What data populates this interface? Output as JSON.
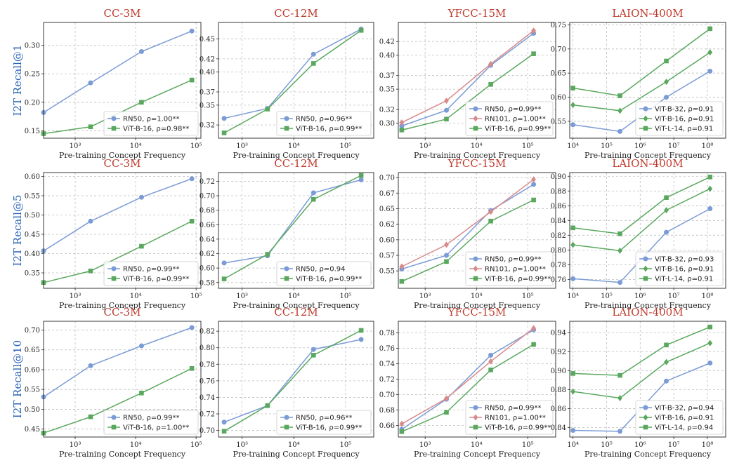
{
  "colors": {
    "RN50": "#7b9bd6",
    "RN101": "#d98a8a",
    "ViT-B-16": "#5aa85e",
    "ViT-B-32": "#7b9bd6",
    "ViT-L-14": "#5aa85e",
    "title": "#c0392b",
    "rowlabel": "#2a64b5"
  },
  "chart_data": [
    {
      "type": "line",
      "title": "CC-3M",
      "ylabel": "I2T Recall@1",
      "xlabel": "Pre-training Concept Frequency",
      "xscale": "log",
      "xlim": [
        300,
        120000
      ],
      "ylim": [
        0.137,
        0.34
      ],
      "yticks": [
        0.15,
        0.2,
        0.25,
        0.3
      ],
      "ytick_labels": [
        "0.15",
        "0.20",
        "0.25",
        "0.30"
      ],
      "xticks": [
        1000,
        10000,
        100000
      ],
      "legend_position": "lower-right",
      "grid": true,
      "series": [
        {
          "name": "RN50",
          "label": "RN50, ρ=1.00**",
          "marker": "circle",
          "x": [
            300,
            1800,
            12500,
            85000
          ],
          "values": [
            0.182,
            0.234,
            0.289,
            0.325
          ]
        },
        {
          "name": "ViT-B-16",
          "label": "ViT-B-16, ρ=0.98**",
          "marker": "square",
          "x": [
            300,
            1800,
            12500,
            85000
          ],
          "values": [
            0.145,
            0.157,
            0.2,
            0.239
          ]
        }
      ]
    },
    {
      "type": "line",
      "title": "CC-12M",
      "ylabel": "",
      "xlabel": "Pre-training Concept Frequency",
      "xscale": "log",
      "xlim": [
        350,
        350000
      ],
      "ylim": [
        0.3,
        0.475
      ],
      "yticks": [
        0.32,
        0.35,
        0.37,
        0.4,
        0.42,
        0.45
      ],
      "ytick_labels": [
        "0.32",
        "0.35",
        "0.37",
        "0.40",
        "0.42",
        "0.45"
      ],
      "xticks": [
        1000,
        10000,
        100000
      ],
      "legend_position": "lower-right",
      "grid": true,
      "series": [
        {
          "name": "RN50",
          "label": "RN50, ρ=0.96**",
          "marker": "circle",
          "x": [
            450,
            3100,
            24000,
            200000
          ],
          "values": [
            0.33,
            0.345,
            0.427,
            0.465
          ]
        },
        {
          "name": "ViT-B-16",
          "label": "ViT-B-16, ρ=0.99**",
          "marker": "square",
          "x": [
            450,
            3100,
            24000,
            200000
          ],
          "values": [
            0.308,
            0.344,
            0.413,
            0.463
          ]
        }
      ]
    },
    {
      "type": "line",
      "title": "YFCC-15M",
      "ylabel": "",
      "xlabel": "Pre-training Concept Frequency",
      "xscale": "log",
      "xlim": [
        300,
        350000
      ],
      "ylim": [
        0.278,
        0.448
      ],
      "yticks": [
        0.3,
        0.32,
        0.35,
        0.37,
        0.4,
        0.42
      ],
      "ytick_labels": [
        "0.30",
        "0.32",
        "0.35",
        "0.37",
        "0.40",
        "0.42"
      ],
      "xticks": [
        1000,
        10000,
        100000
      ],
      "legend_position": "lower-right",
      "grid": true,
      "series": [
        {
          "name": "RN50",
          "label": "RN50, ρ=0.99**",
          "marker": "circle",
          "x": [
            350,
            2600,
            19000,
            130000
          ],
          "values": [
            0.296,
            0.319,
            0.385,
            0.432
          ]
        },
        {
          "name": "RN101",
          "label": "RN101, ρ=1.00**",
          "marker": "diamond",
          "x": [
            350,
            2600,
            19000,
            130000
          ],
          "values": [
            0.301,
            0.333,
            0.387,
            0.436
          ]
        },
        {
          "name": "ViT-B-16",
          "label": "ViT-B-16, ρ=0.99**",
          "marker": "square",
          "x": [
            350,
            2600,
            19000,
            130000
          ],
          "values": [
            0.29,
            0.306,
            0.357,
            0.402
          ]
        }
      ]
    },
    {
      "type": "line",
      "title": "LAION-400M",
      "ylabel": "",
      "xlabel": "Pre-training Concept Frequency",
      "xscale": "log",
      "xlim": [
        8000,
        350000000
      ],
      "ylim": [
        0.515,
        0.755
      ],
      "yticks": [
        0.55,
        0.6,
        0.65,
        0.7,
        0.75
      ],
      "ytick_labels": [
        "0.55",
        "0.60",
        "0.65",
        "0.70",
        "0.75"
      ],
      "xticks": [
        10000,
        100000,
        1000000,
        10000000,
        100000000
      ],
      "legend_position": "lower-right",
      "grid": true,
      "series": [
        {
          "name": "ViT-B-32",
          "label": "ViT-B-32, ρ=0.91",
          "marker": "circle",
          "x": [
            10000,
            250000,
            6000000,
            120000000
          ],
          "values": [
            0.543,
            0.529,
            0.6,
            0.654
          ]
        },
        {
          "name": "ViT-B-16",
          "label": "ViT-B-16, ρ=0.91",
          "marker": "diamond",
          "x": [
            10000,
            250000,
            6000000,
            120000000
          ],
          "values": [
            0.584,
            0.572,
            0.632,
            0.693
          ]
        },
        {
          "name": "ViT-L-14",
          "label": "ViT-L-14, ρ=0.91",
          "marker": "square",
          "x": [
            10000,
            250000,
            6000000,
            120000000
          ],
          "values": [
            0.619,
            0.603,
            0.675,
            0.742
          ]
        }
      ]
    },
    {
      "type": "line",
      "title": "CC-3M",
      "ylabel": "I2T Recall@5",
      "xlabel": "Pre-training Concept Frequency",
      "xscale": "log",
      "xlim": [
        300,
        120000
      ],
      "ylim": [
        0.31,
        0.61
      ],
      "yticks": [
        0.35,
        0.4,
        0.45,
        0.5,
        0.55,
        0.6
      ],
      "ytick_labels": [
        "0.35",
        "0.40",
        "0.45",
        "0.50",
        "0.55",
        "0.60"
      ],
      "xticks": [
        1000,
        10000,
        100000
      ],
      "legend_position": "lower-right",
      "grid": true,
      "series": [
        {
          "name": "RN50",
          "label": "RN50, ρ=0.99**",
          "marker": "circle",
          "x": [
            300,
            1800,
            12500,
            85000
          ],
          "values": [
            0.407,
            0.484,
            0.546,
            0.594
          ]
        },
        {
          "name": "ViT-B-16",
          "label": "ViT-B-16, ρ=0.99**",
          "marker": "square",
          "x": [
            300,
            1800,
            12500,
            85000
          ],
          "values": [
            0.325,
            0.355,
            0.419,
            0.484
          ]
        }
      ]
    },
    {
      "type": "line",
      "title": "CC-12M",
      "ylabel": "",
      "xlabel": "Pre-training Concept Frequency",
      "xscale": "log",
      "xlim": [
        350,
        350000
      ],
      "ylim": [
        0.572,
        0.732
      ],
      "yticks": [
        0.58,
        0.6,
        0.62,
        0.64,
        0.66,
        0.68,
        0.7,
        0.72
      ],
      "ytick_labels": [
        "0.58",
        "0.60",
        "0.62",
        "0.64",
        "0.66",
        "0.68",
        "0.70",
        "0.72"
      ],
      "xticks": [
        1000,
        10000,
        100000
      ],
      "legend_position": "lower-right",
      "grid": true,
      "series": [
        {
          "name": "RN50",
          "label": "RN50, ρ=0.94",
          "marker": "circle",
          "x": [
            450,
            3100,
            24000,
            200000
          ],
          "values": [
            0.607,
            0.617,
            0.704,
            0.722
          ]
        },
        {
          "name": "ViT-B-16",
          "label": "ViT-B-16, ρ=0.99**",
          "marker": "square",
          "x": [
            450,
            3100,
            24000,
            200000
          ],
          "values": [
            0.585,
            0.619,
            0.695,
            0.728
          ]
        }
      ]
    },
    {
      "type": "line",
      "title": "YFCC-15M",
      "ylabel": "",
      "xlabel": "Pre-training Concept Frequency",
      "xscale": "log",
      "xlim": [
        300,
        350000
      ],
      "ylim": [
        0.522,
        0.708
      ],
      "yticks": [
        0.55,
        0.575,
        0.6,
        0.625,
        0.65,
        0.675,
        0.7
      ],
      "ytick_labels": [
        "0.55",
        "0.57",
        "0.60",
        "0.62",
        "0.65",
        "0.67",
        "0.70"
      ],
      "xticks": [
        1000,
        10000,
        100000
      ],
      "legend_position": "lower-right",
      "grid": true,
      "series": [
        {
          "name": "RN50",
          "label": "RN50, ρ=0.99**",
          "marker": "circle",
          "x": [
            350,
            2600,
            19000,
            130000
          ],
          "values": [
            0.553,
            0.575,
            0.647,
            0.689
          ]
        },
        {
          "name": "RN101",
          "label": "RN101, ρ=1.00**",
          "marker": "diamond",
          "x": [
            350,
            2600,
            19000,
            130000
          ],
          "values": [
            0.557,
            0.592,
            0.645,
            0.697
          ]
        },
        {
          "name": "ViT-B-16",
          "label": "ViT-B-16, ρ=0.99**",
          "marker": "square",
          "x": [
            350,
            2600,
            19000,
            130000
          ],
          "values": [
            0.533,
            0.565,
            0.63,
            0.664
          ]
        }
      ]
    },
    {
      "type": "line",
      "title": "LAION-400M",
      "ylabel": "",
      "xlabel": "Pre-training Concept Frequency",
      "xscale": "log",
      "xlim": [
        8000,
        350000000
      ],
      "ylim": [
        0.748,
        0.905
      ],
      "yticks": [
        0.76,
        0.78,
        0.8,
        0.82,
        0.84,
        0.86,
        0.88,
        0.9
      ],
      "ytick_labels": [
        "0.76",
        "0.78",
        "0.80",
        "0.82",
        "0.84",
        "0.86",
        "0.88",
        "0.90"
      ],
      "xticks": [
        10000,
        100000,
        1000000,
        10000000,
        100000000
      ],
      "legend_position": "lower-right",
      "grid": true,
      "series": [
        {
          "name": "ViT-B-32",
          "label": "ViT-B-32, ρ=0.93",
          "marker": "circle",
          "x": [
            10000,
            250000,
            6000000,
            120000000
          ],
          "values": [
            0.761,
            0.756,
            0.824,
            0.856
          ]
        },
        {
          "name": "ViT-B-16",
          "label": "ViT-B-16, ρ=0.91",
          "marker": "diamond",
          "x": [
            10000,
            250000,
            6000000,
            120000000
          ],
          "values": [
            0.807,
            0.799,
            0.854,
            0.883
          ]
        },
        {
          "name": "ViT-L-14",
          "label": "ViT-L-14, ρ=0.91",
          "marker": "square",
          "x": [
            10000,
            250000,
            6000000,
            120000000
          ],
          "values": [
            0.83,
            0.822,
            0.871,
            0.899
          ]
        }
      ]
    },
    {
      "type": "line",
      "title": "CC-3M",
      "ylabel": "I2T Recall@10",
      "xlabel": "Pre-training Concept Frequency",
      "xscale": "log",
      "xlim": [
        300,
        120000
      ],
      "ylim": [
        0.43,
        0.722
      ],
      "yticks": [
        0.45,
        0.5,
        0.55,
        0.6,
        0.65,
        0.7
      ],
      "ytick_labels": [
        "0.45",
        "0.50",
        "0.55",
        "0.60",
        "0.65",
        "0.70"
      ],
      "xticks": [
        1000,
        10000,
        100000
      ],
      "legend_position": "lower-right",
      "grid": true,
      "series": [
        {
          "name": "RN50",
          "label": "RN50, ρ=0.99**",
          "marker": "circle",
          "x": [
            300,
            1800,
            12500,
            85000
          ],
          "values": [
            0.531,
            0.61,
            0.66,
            0.706
          ]
        },
        {
          "name": "ViT-B-16",
          "label": "ViT-B-16, ρ=1.00**",
          "marker": "square",
          "x": [
            300,
            1800,
            12500,
            85000
          ],
          "values": [
            0.44,
            0.481,
            0.541,
            0.603
          ]
        }
      ]
    },
    {
      "type": "line",
      "title": "CC-12M",
      "ylabel": "",
      "xlabel": "Pre-training Concept Frequency",
      "xscale": "log",
      "xlim": [
        350,
        350000
      ],
      "ylim": [
        0.692,
        0.832
      ],
      "yticks": [
        0.7,
        0.72,
        0.74,
        0.76,
        0.78,
        0.8,
        0.82
      ],
      "ytick_labels": [
        "0.70",
        "0.72",
        "0.74",
        "0.76",
        "0.78",
        "0.80",
        "0.82"
      ],
      "xticks": [
        1000,
        10000,
        100000
      ],
      "legend_position": "lower-right",
      "grid": true,
      "series": [
        {
          "name": "RN50",
          "label": "RN50, ρ=0.96**",
          "marker": "circle",
          "x": [
            450,
            3100,
            24000,
            200000
          ],
          "values": [
            0.71,
            0.73,
            0.798,
            0.81
          ]
        },
        {
          "name": "ViT-B-16",
          "label": "ViT-B-16, ρ=0.99**",
          "marker": "square",
          "x": [
            450,
            3100,
            24000,
            200000
          ],
          "values": [
            0.699,
            0.73,
            0.791,
            0.821
          ]
        }
      ]
    },
    {
      "type": "line",
      "title": "YFCC-15M",
      "ylabel": "",
      "xlabel": "Pre-training Concept Frequency",
      "xscale": "log",
      "xlim": [
        300,
        350000
      ],
      "ylim": [
        0.645,
        0.795
      ],
      "yticks": [
        0.66,
        0.68,
        0.7,
        0.72,
        0.74,
        0.76,
        0.78
      ],
      "ytick_labels": [
        "0.66",
        "0.68",
        "0.70",
        "0.72",
        "0.74",
        "0.76",
        "0.78"
      ],
      "xticks": [
        1000,
        10000,
        100000
      ],
      "legend_position": "lower-right",
      "grid": true,
      "series": [
        {
          "name": "RN50",
          "label": "RN50, ρ=0.99**",
          "marker": "circle",
          "x": [
            350,
            2600,
            19000,
            130000
          ],
          "values": [
            0.655,
            0.694,
            0.751,
            0.784
          ]
        },
        {
          "name": "RN101",
          "label": "RN101, ρ=1.00**",
          "marker": "diamond",
          "x": [
            350,
            2600,
            19000,
            130000
          ],
          "values": [
            0.662,
            0.695,
            0.743,
            0.786
          ]
        },
        {
          "name": "ViT-B-16",
          "label": "ViT-B-16, ρ=0.99**",
          "marker": "square",
          "x": [
            350,
            2600,
            19000,
            130000
          ],
          "values": [
            0.652,
            0.677,
            0.732,
            0.765
          ]
        }
      ]
    },
    {
      "type": "line",
      "title": "LAION-400M",
      "ylabel": "",
      "xlabel": "Pre-training Concept Frequency",
      "xscale": "log",
      "xlim": [
        8000,
        350000000
      ],
      "ylim": [
        0.83,
        0.952
      ],
      "yticks": [
        0.84,
        0.86,
        0.88,
        0.9,
        0.92,
        0.94
      ],
      "ytick_labels": [
        "0.84",
        "0.86",
        "0.88",
        "0.90",
        "0.92",
        "0.94"
      ],
      "xticks": [
        10000,
        100000,
        1000000,
        10000000,
        100000000
      ],
      "legend_position": "lower-right",
      "grid": true,
      "series": [
        {
          "name": "ViT-B-32",
          "label": "ViT-B-32, ρ=0.94",
          "marker": "circle",
          "x": [
            10000,
            250000,
            6000000,
            120000000
          ],
          "values": [
            0.837,
            0.836,
            0.889,
            0.908
          ]
        },
        {
          "name": "ViT-B-16",
          "label": "ViT-B-16, ρ=0.91",
          "marker": "diamond",
          "x": [
            10000,
            250000,
            6000000,
            120000000
          ],
          "values": [
            0.878,
            0.871,
            0.909,
            0.929
          ]
        },
        {
          "name": "ViT-L-14",
          "label": "ViT-L-14, ρ=0.94",
          "marker": "square",
          "x": [
            10000,
            250000,
            6000000,
            120000000
          ],
          "values": [
            0.897,
            0.895,
            0.927,
            0.946
          ]
        }
      ]
    }
  ]
}
